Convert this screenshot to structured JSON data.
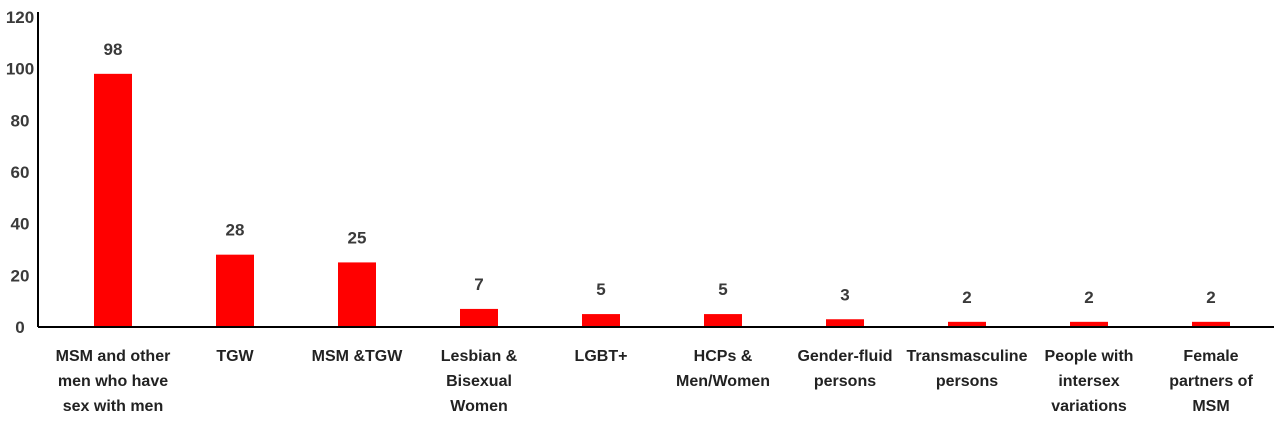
{
  "chart_data": {
    "type": "bar",
    "title": "",
    "xlabel": "",
    "ylabel": "",
    "ylim": [
      0,
      120
    ],
    "yticks": [
      0,
      20,
      40,
      60,
      80,
      100,
      120
    ],
    "grid": false,
    "legend": "none",
    "bar_color": "#ff0000",
    "axis_color": "#000000",
    "categories": [
      [
        "MSM and other",
        "men who have",
        "sex with men"
      ],
      [
        "TGW"
      ],
      [
        "MSM &TGW"
      ],
      [
        "Lesbian &",
        "Bisexual",
        "Women"
      ],
      [
        "LGBT+"
      ],
      [
        "HCPs &",
        "Men/Women"
      ],
      [
        "Gender-fluid",
        "persons"
      ],
      [
        "Transmasculine",
        "persons"
      ],
      [
        "People with",
        "intersex",
        "variations"
      ],
      [
        "Female",
        "partners of",
        "MSM"
      ]
    ],
    "values": [
      98,
      28,
      25,
      7,
      5,
      5,
      3,
      2,
      2,
      2
    ]
  }
}
